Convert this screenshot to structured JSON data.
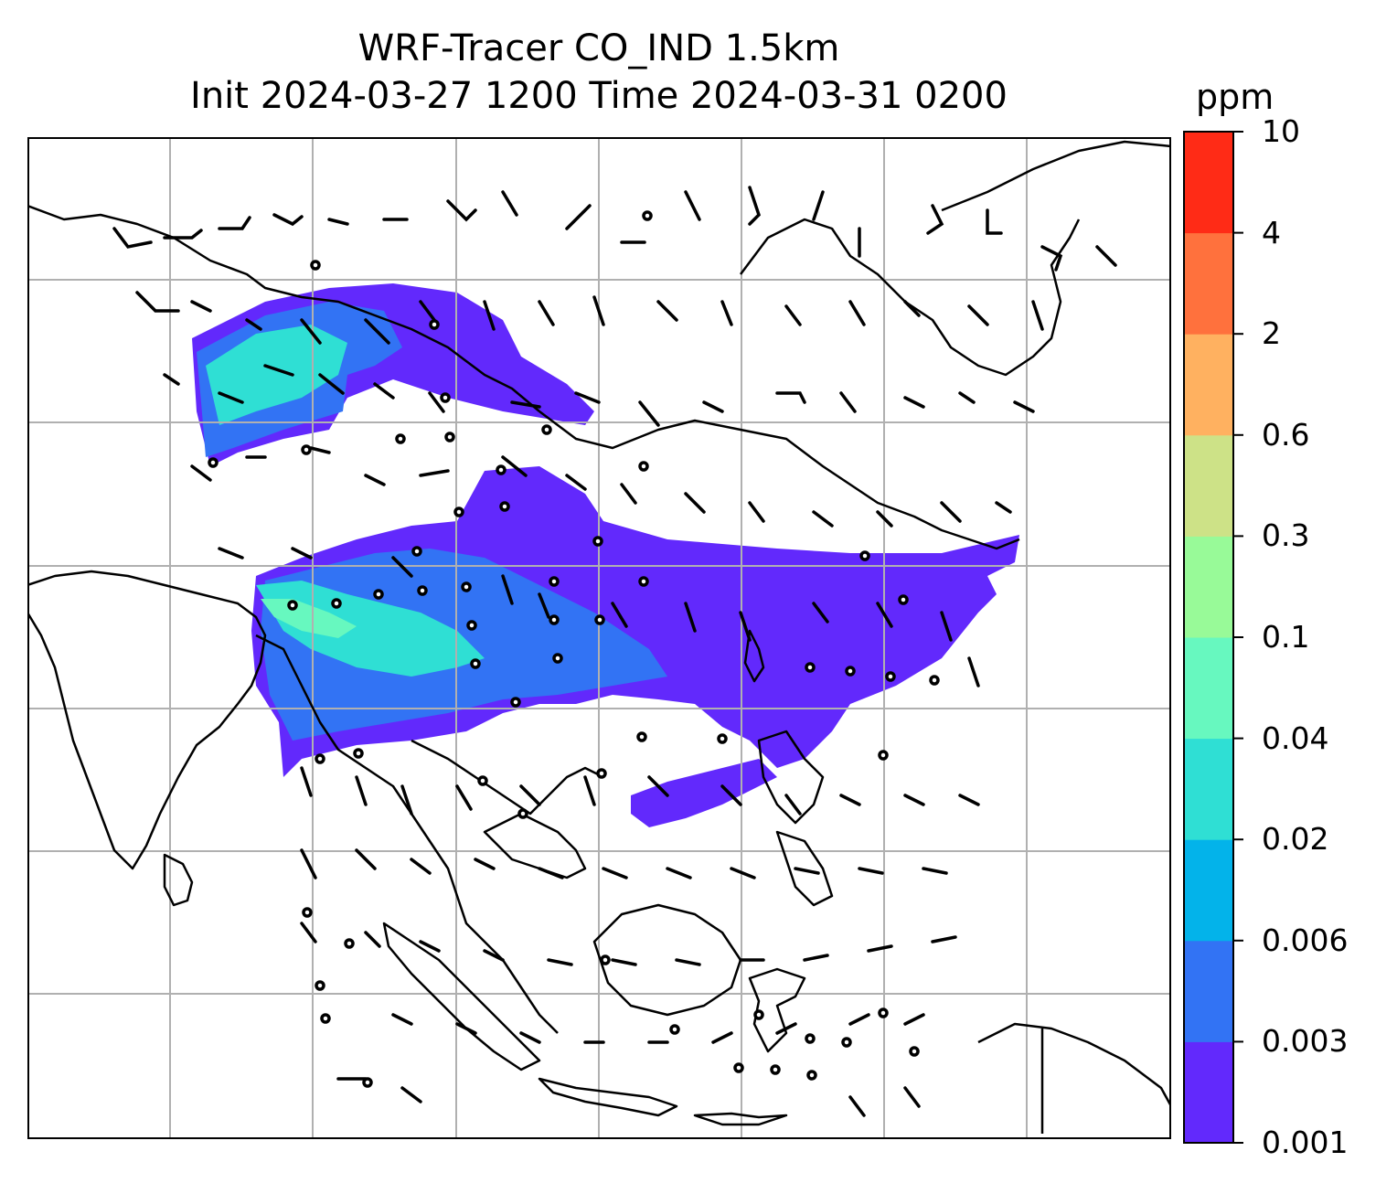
{
  "title": {
    "line1": "WRF-Tracer CO_IND 1.5km",
    "line2": "Init 2024-03-27 1200 Time 2024-03-31 0200"
  },
  "colorbar": {
    "unit": "ppm",
    "levels": [
      "0.001",
      "0.003",
      "0.006",
      "0.02",
      "0.04",
      "0.1",
      "0.3",
      "0.6",
      "2",
      "4",
      "10"
    ],
    "colors": [
      "#6229fc",
      "#3273f4",
      "#03b3ea",
      "#2fdfd4",
      "#67f8bf",
      "#98fa98",
      "#cde287",
      "#ffb160",
      "#ff713d",
      "#ff2b16"
    ]
  },
  "map": {
    "gridlines": true,
    "background": "#ffffff",
    "coastline_color": "#000000",
    "grid_color": "#b0b0b0",
    "wind_barbs": true
  }
}
